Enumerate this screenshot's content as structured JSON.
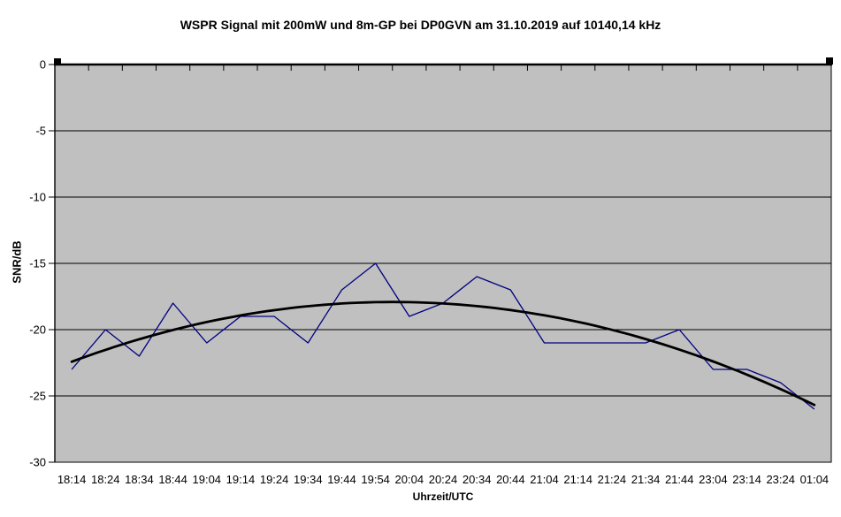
{
  "chart_data": {
    "type": "line",
    "title": "WSPR Signal mit 200mW und 8m-GP bei DP0GVN am 31.10.2019 auf 10140,14 kHz",
    "xlabel": "Uhrzeit/UTC",
    "ylabel": "SNR/dB",
    "categories": [
      "18:14",
      "18:24",
      "18:34",
      "18:44",
      "19:04",
      "19:14",
      "19:24",
      "19:34",
      "19:44",
      "19:54",
      "20:04",
      "20:24",
      "20:34",
      "20:44",
      "21:04",
      "21:14",
      "21:24",
      "21:34",
      "21:44",
      "23:04",
      "23:14",
      "23:24",
      "01:04"
    ],
    "series": [
      {
        "values": [
          -23,
          -20,
          -22,
          -18,
          -21,
          -19,
          -19,
          -21,
          -17,
          -15,
          -19,
          -18,
          -16,
          -17,
          -21,
          -21,
          -21,
          -21,
          -20,
          -23,
          -23,
          -24,
          -26
        ],
        "color": "#000080"
      }
    ],
    "trendline": {
      "type": "polynomial",
      "order": 2,
      "color": "#000000"
    },
    "ylim": [
      -30,
      0
    ],
    "ytick_step": 5,
    "yticks": [
      0,
      -5,
      -10,
      -15,
      -20,
      -25,
      -30
    ],
    "grid": true,
    "legend": false,
    "plot_background": "#c0c0c0",
    "gridline_color": "#000000",
    "axis_color": "#000000"
  }
}
